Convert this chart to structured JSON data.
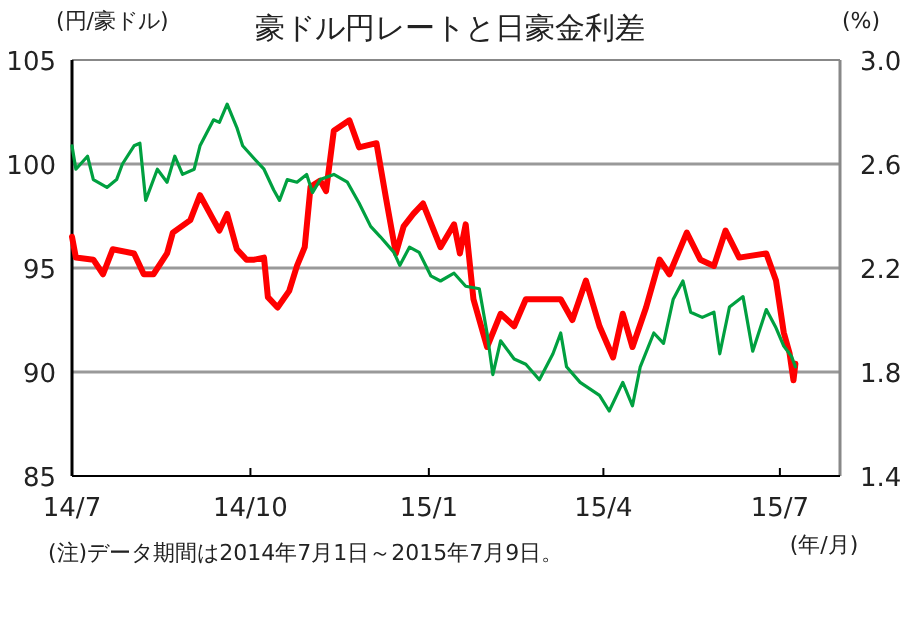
{
  "chart_data": {
    "type": "line",
    "title": "豪ドル円レートと日豪金利差",
    "ylabel": "(円/豪ドル)",
    "y2label": "(%)",
    "xlabel": "(年/月)",
    "annotations": [
      "(注)データ期間は2014年7月1日～2015年7月9日。"
    ],
    "xlim": [
      "2014-07-01",
      "2015-08-01"
    ],
    "xticks": [
      {
        "value": "2014-07-01",
        "label": "14/7"
      },
      {
        "value": "2014-10-01",
        "label": "14/10"
      },
      {
        "value": "2015-01-01",
        "label": "15/1"
      },
      {
        "value": "2015-04-01",
        "label": "15/4"
      },
      {
        "value": "2015-07-01",
        "label": "15/7"
      }
    ],
    "ylim": [
      85,
      105
    ],
    "yticks": [
      85,
      90,
      95,
      100,
      105
    ],
    "y2lim": [
      1.4,
      3.0
    ],
    "y2ticks": [
      1.4,
      1.8,
      2.2,
      2.6,
      {
        "value": 3,
        "label": "3.0"
      }
    ],
    "grid": "y",
    "marker": "none",
    "line_style": "solid",
    "series": [
      {
        "color": "#ff0000",
        "x": [
          "2014-07-01",
          "2014-07-03",
          "2014-07-12",
          "2014-07-17",
          "2014-07-22",
          "2014-08-02",
          "2014-08-07",
          "2014-08-12",
          "2014-08-19",
          "2014-08-22",
          "2014-08-31",
          "2014-09-05",
          "2014-09-12",
          "2014-09-15",
          "2014-09-19",
          "2014-09-24",
          "2014-09-29",
          "2014-10-03",
          "2014-10-08",
          "2014-10-10",
          "2014-10-15",
          "2014-10-21",
          "2014-10-25",
          "2014-10-29",
          "2014-11-01",
          "2014-11-06",
          "2014-11-09",
          "2014-11-13",
          "2014-11-21",
          "2014-11-26",
          "2014-12-05",
          "2014-12-10",
          "2014-12-15",
          "2014-12-19",
          "2014-12-24",
          "2014-12-29",
          "2015-01-07",
          "2015-01-14",
          "2015-01-17",
          "2015-01-20",
          "2015-01-24",
          "2015-01-31",
          "2015-02-07",
          "2015-02-14",
          "2015-02-20",
          "2015-02-27",
          "2015-03-10",
          "2015-03-16",
          "2015-03-23",
          "2015-03-30",
          "2015-04-06",
          "2015-04-11",
          "2015-04-16",
          "2015-04-23",
          "2015-04-30",
          "2015-05-05",
          "2015-05-14",
          "2015-05-21",
          "2015-05-28",
          "2015-06-03",
          "2015-06-10",
          "2015-06-24",
          "2015-06-29",
          "2015-07-03",
          "2015-07-06",
          "2015-07-08",
          "2015-07-09"
        ],
        "values": [
          96.5,
          95.5,
          95.4,
          94.7,
          95.9,
          95.7,
          94.7,
          94.7,
          95.7,
          96.7,
          97.3,
          98.5,
          97.3,
          96.8,
          97.6,
          95.9,
          95.4,
          95.4,
          95.5,
          93.6,
          93.1,
          93.9,
          95.1,
          96.0,
          98.9,
          99.2,
          98.7,
          101.6,
          102.1,
          100.8,
          101.0,
          98.3,
          95.7,
          97.0,
          97.6,
          98.1,
          96.0,
          97.1,
          95.7,
          97.1,
          93.5,
          91.2,
          92.8,
          92.2,
          93.5,
          93.5,
          93.5,
          92.5,
          94.4,
          92.2,
          90.7,
          92.8,
          91.2,
          93.1,
          95.4,
          94.7,
          96.7,
          95.4,
          95.1,
          96.8,
          95.5,
          95.7,
          94.4,
          91.9,
          90.9,
          89.6,
          90.4
        ]
      },
      {
        "color": "#00a040",
        "axis": "y2",
        "x": [
          "2014-07-01",
          "2014-07-03",
          "2014-07-09",
          "2014-07-12",
          "2014-07-19",
          "2014-07-24",
          "2014-07-27",
          "2014-08-02",
          "2014-08-05",
          "2014-08-08",
          "2014-08-14",
          "2014-08-19",
          "2014-08-23",
          "2014-08-27",
          "2014-09-02",
          "2014-09-05",
          "2014-09-12",
          "2014-09-15",
          "2014-09-19",
          "2014-09-24",
          "2014-09-27",
          "2014-10-03",
          "2014-10-08",
          "2014-10-13",
          "2014-10-16",
          "2014-10-20",
          "2014-10-25",
          "2014-10-30",
          "2014-11-02",
          "2014-11-06",
          "2014-11-13",
          "2014-11-20",
          "2014-11-26",
          "2014-12-02",
          "2014-12-07",
          "2014-12-14",
          "2014-12-17",
          "2014-12-22",
          "2014-12-27",
          "2015-01-02",
          "2015-01-07",
          "2015-01-14",
          "2015-01-20",
          "2015-01-27",
          "2015-01-31",
          "2015-02-03",
          "2015-02-07",
          "2015-02-14",
          "2015-02-20",
          "2015-02-27",
          "2015-03-06",
          "2015-03-10",
          "2015-03-13",
          "2015-03-20",
          "2015-03-30",
          "2015-04-04",
          "2015-04-11",
          "2015-04-16",
          "2015-04-20",
          "2015-04-27",
          "2015-05-02",
          "2015-05-07",
          "2015-05-12",
          "2015-05-16",
          "2015-05-22",
          "2015-05-28",
          "2015-05-31",
          "2015-06-05",
          "2015-06-12",
          "2015-06-17",
          "2015-06-24",
          "2015-06-29",
          "2015-07-03",
          "2015-07-07",
          "2015-07-09"
        ],
        "values": [
          2.67,
          2.58,
          2.63,
          2.54,
          2.51,
          2.54,
          2.6,
          2.67,
          2.68,
          2.46,
          2.58,
          2.53,
          2.63,
          2.56,
          2.58,
          2.67,
          2.77,
          2.76,
          2.83,
          2.74,
          2.67,
          2.62,
          2.58,
          2.5,
          2.46,
          2.54,
          2.53,
          2.56,
          2.49,
          2.54,
          2.56,
          2.53,
          2.45,
          2.36,
          2.32,
          2.26,
          2.21,
          2.28,
          2.26,
          2.17,
          2.15,
          2.18,
          2.13,
          2.12,
          1.95,
          1.79,
          1.92,
          1.85,
          1.83,
          1.77,
          1.87,
          1.95,
          1.82,
          1.76,
          1.71,
          1.65,
          1.76,
          1.67,
          1.82,
          1.95,
          1.91,
          2.08,
          2.15,
          2.03,
          2.01,
          2.03,
          1.87,
          2.05,
          2.09,
          1.88,
          2.04,
          1.97,
          1.9,
          1.86,
          1.82
        ]
      }
    ]
  }
}
